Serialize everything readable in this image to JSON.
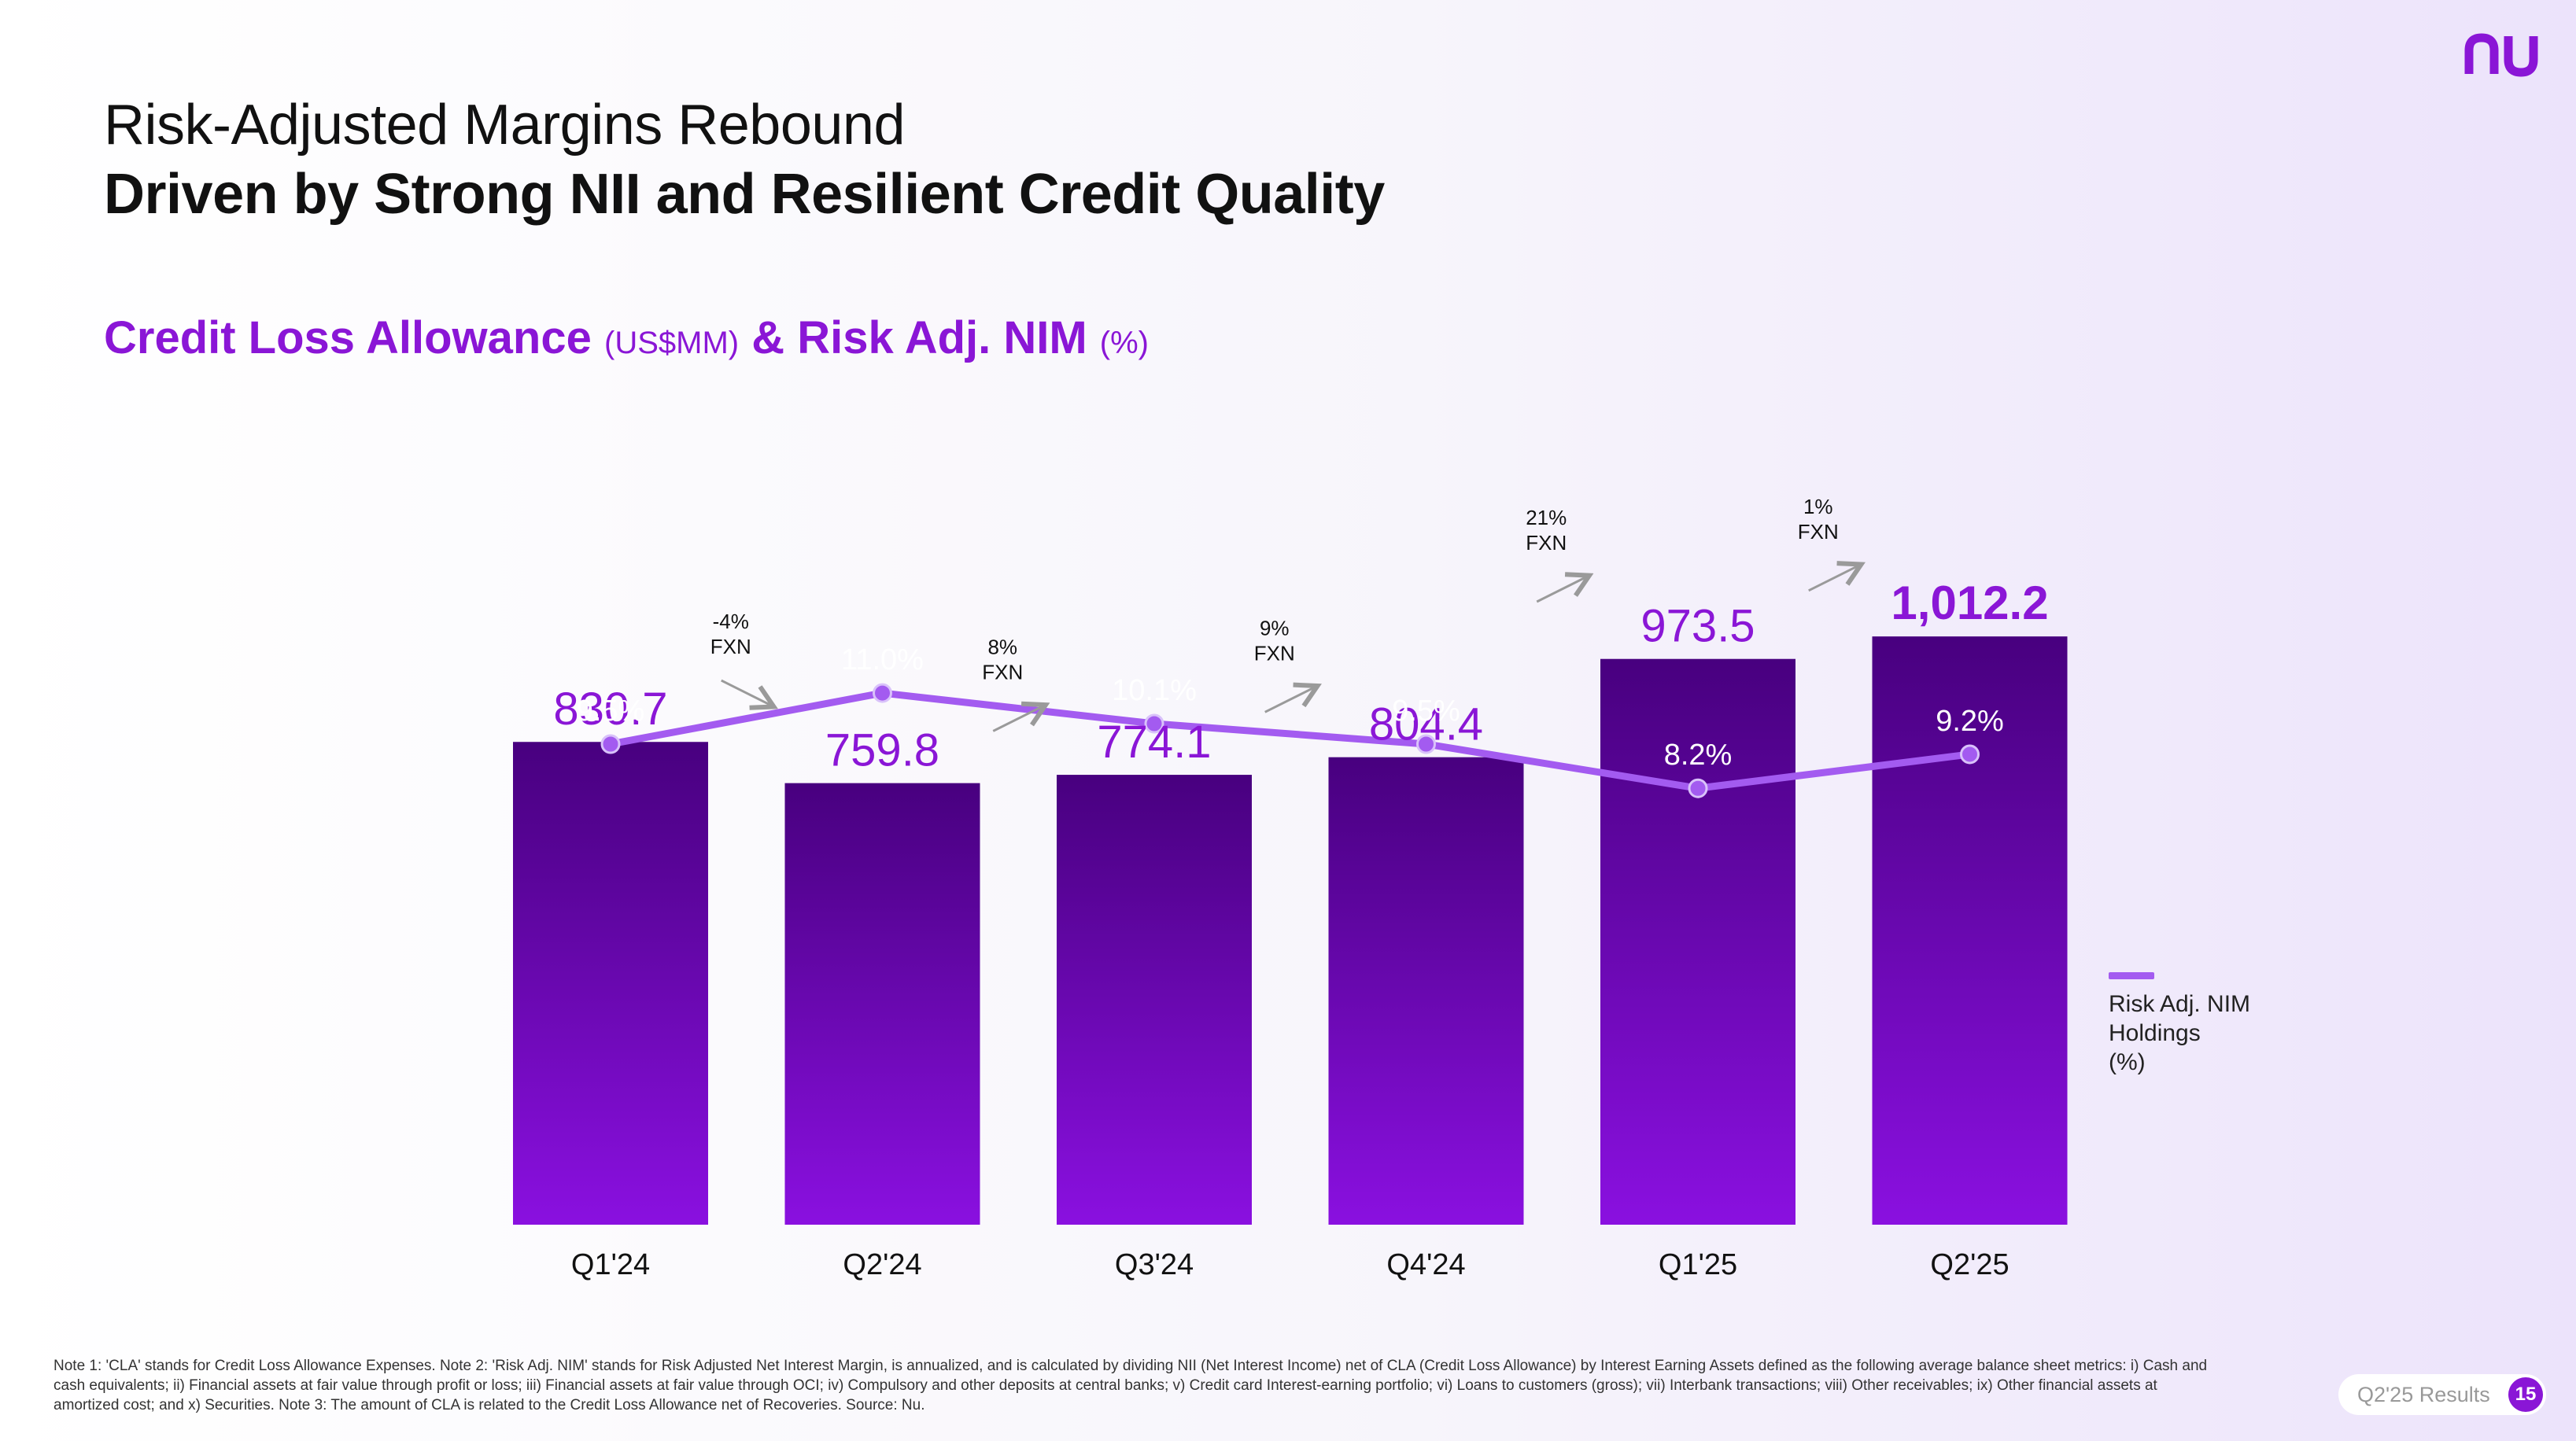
{
  "header": {
    "title_line1": "Risk-Adjusted Margins Rebound",
    "title_line2": "Driven by Strong NII and Resilient Credit Quality",
    "subtitle_main1": "Credit Loss Allowance",
    "subtitle_unit1": "(US$MM)",
    "subtitle_main2": "& Risk Adj. NIM",
    "subtitle_unit2": "(%)"
  },
  "brand": {
    "logo": "nu",
    "accent": "#8a16d6"
  },
  "chart_data": {
    "type": "bar",
    "title": "Credit Loss Allowance (US$MM) & Risk Adj. NIM (%)",
    "categories": [
      "Q1'24",
      "Q2'24",
      "Q3'24",
      "Q4'24",
      "Q1'25",
      "Q2'25"
    ],
    "series": [
      {
        "name": "Credit Loss Allowance (US$MM)",
        "type": "bar",
        "values": [
          830.7,
          759.8,
          774.1,
          804.4,
          973.5,
          1012.2
        ],
        "labels": [
          "830.7",
          "759.8",
          "774.1",
          "804.4",
          "973.5",
          "1,012.2"
        ]
      },
      {
        "name": "Risk Adj. NIM Holdings (%)",
        "type": "line",
        "values": [
          9.5,
          11.0,
          10.1,
          9.5,
          8.2,
          9.2
        ],
        "labels": [
          "9.5%",
          "11.0%",
          "10.1%",
          "9.5%",
          "8.2%",
          "9.2%"
        ]
      }
    ],
    "growth_annotations": [
      {
        "from": "Q1'24",
        "to": "Q2'24",
        "pct": "-4%",
        "basis": "FXN"
      },
      {
        "from": "Q2'24",
        "to": "Q3'24",
        "pct": "8%",
        "basis": "FXN"
      },
      {
        "from": "Q3'24",
        "to": "Q4'24",
        "pct": "9%",
        "basis": "FXN"
      },
      {
        "from": "Q4'24",
        "to": "Q1'25",
        "pct": "21%",
        "basis": "FXN"
      },
      {
        "from": "Q1'25",
        "to": "Q2'25",
        "pct": "1%",
        "basis": "FXN"
      }
    ],
    "bar_ylim": [
      0,
      1150
    ],
    "line_ylim": [
      0,
      14
    ],
    "legend": {
      "position": "right",
      "lines": [
        "Risk Adj. NIM",
        "Holdings",
        "(%)"
      ]
    },
    "colors": {
      "bar_top": "#48007f",
      "bar_bottom": "#8a10e0",
      "bar_label": "#8a16d6",
      "line": "#a35bf0",
      "arrow": "#9a9a9a"
    }
  },
  "footnote": "Note 1: 'CLA' stands for Credit Loss Allowance Expenses. Note 2: 'Risk Adj. NIM' stands for Risk Adjusted Net Interest Margin, is annualized, and is calculated by dividing NII (Net Interest Income) net of CLA (Credit Loss Allowance) by Interest Earning Assets defined as the following average balance sheet metrics: i) Cash and cash equivalents; ii) Financial assets at fair value through profit or loss; iii) Financial assets at fair value through OCI; iv) Compulsory and other deposits at central banks; v) Credit card Interest-earning portfolio; vi) Loans to customers (gross); vii) Interbank transactions; viii) Other receivables; ix) Other financial assets at amortized cost; and x) Securities. Note 3: The amount of CLA is related to the Credit Loss Allowance net of Recoveries. Source: Nu.",
  "footer": {
    "label": "Q2'25 Results",
    "page": "15"
  }
}
